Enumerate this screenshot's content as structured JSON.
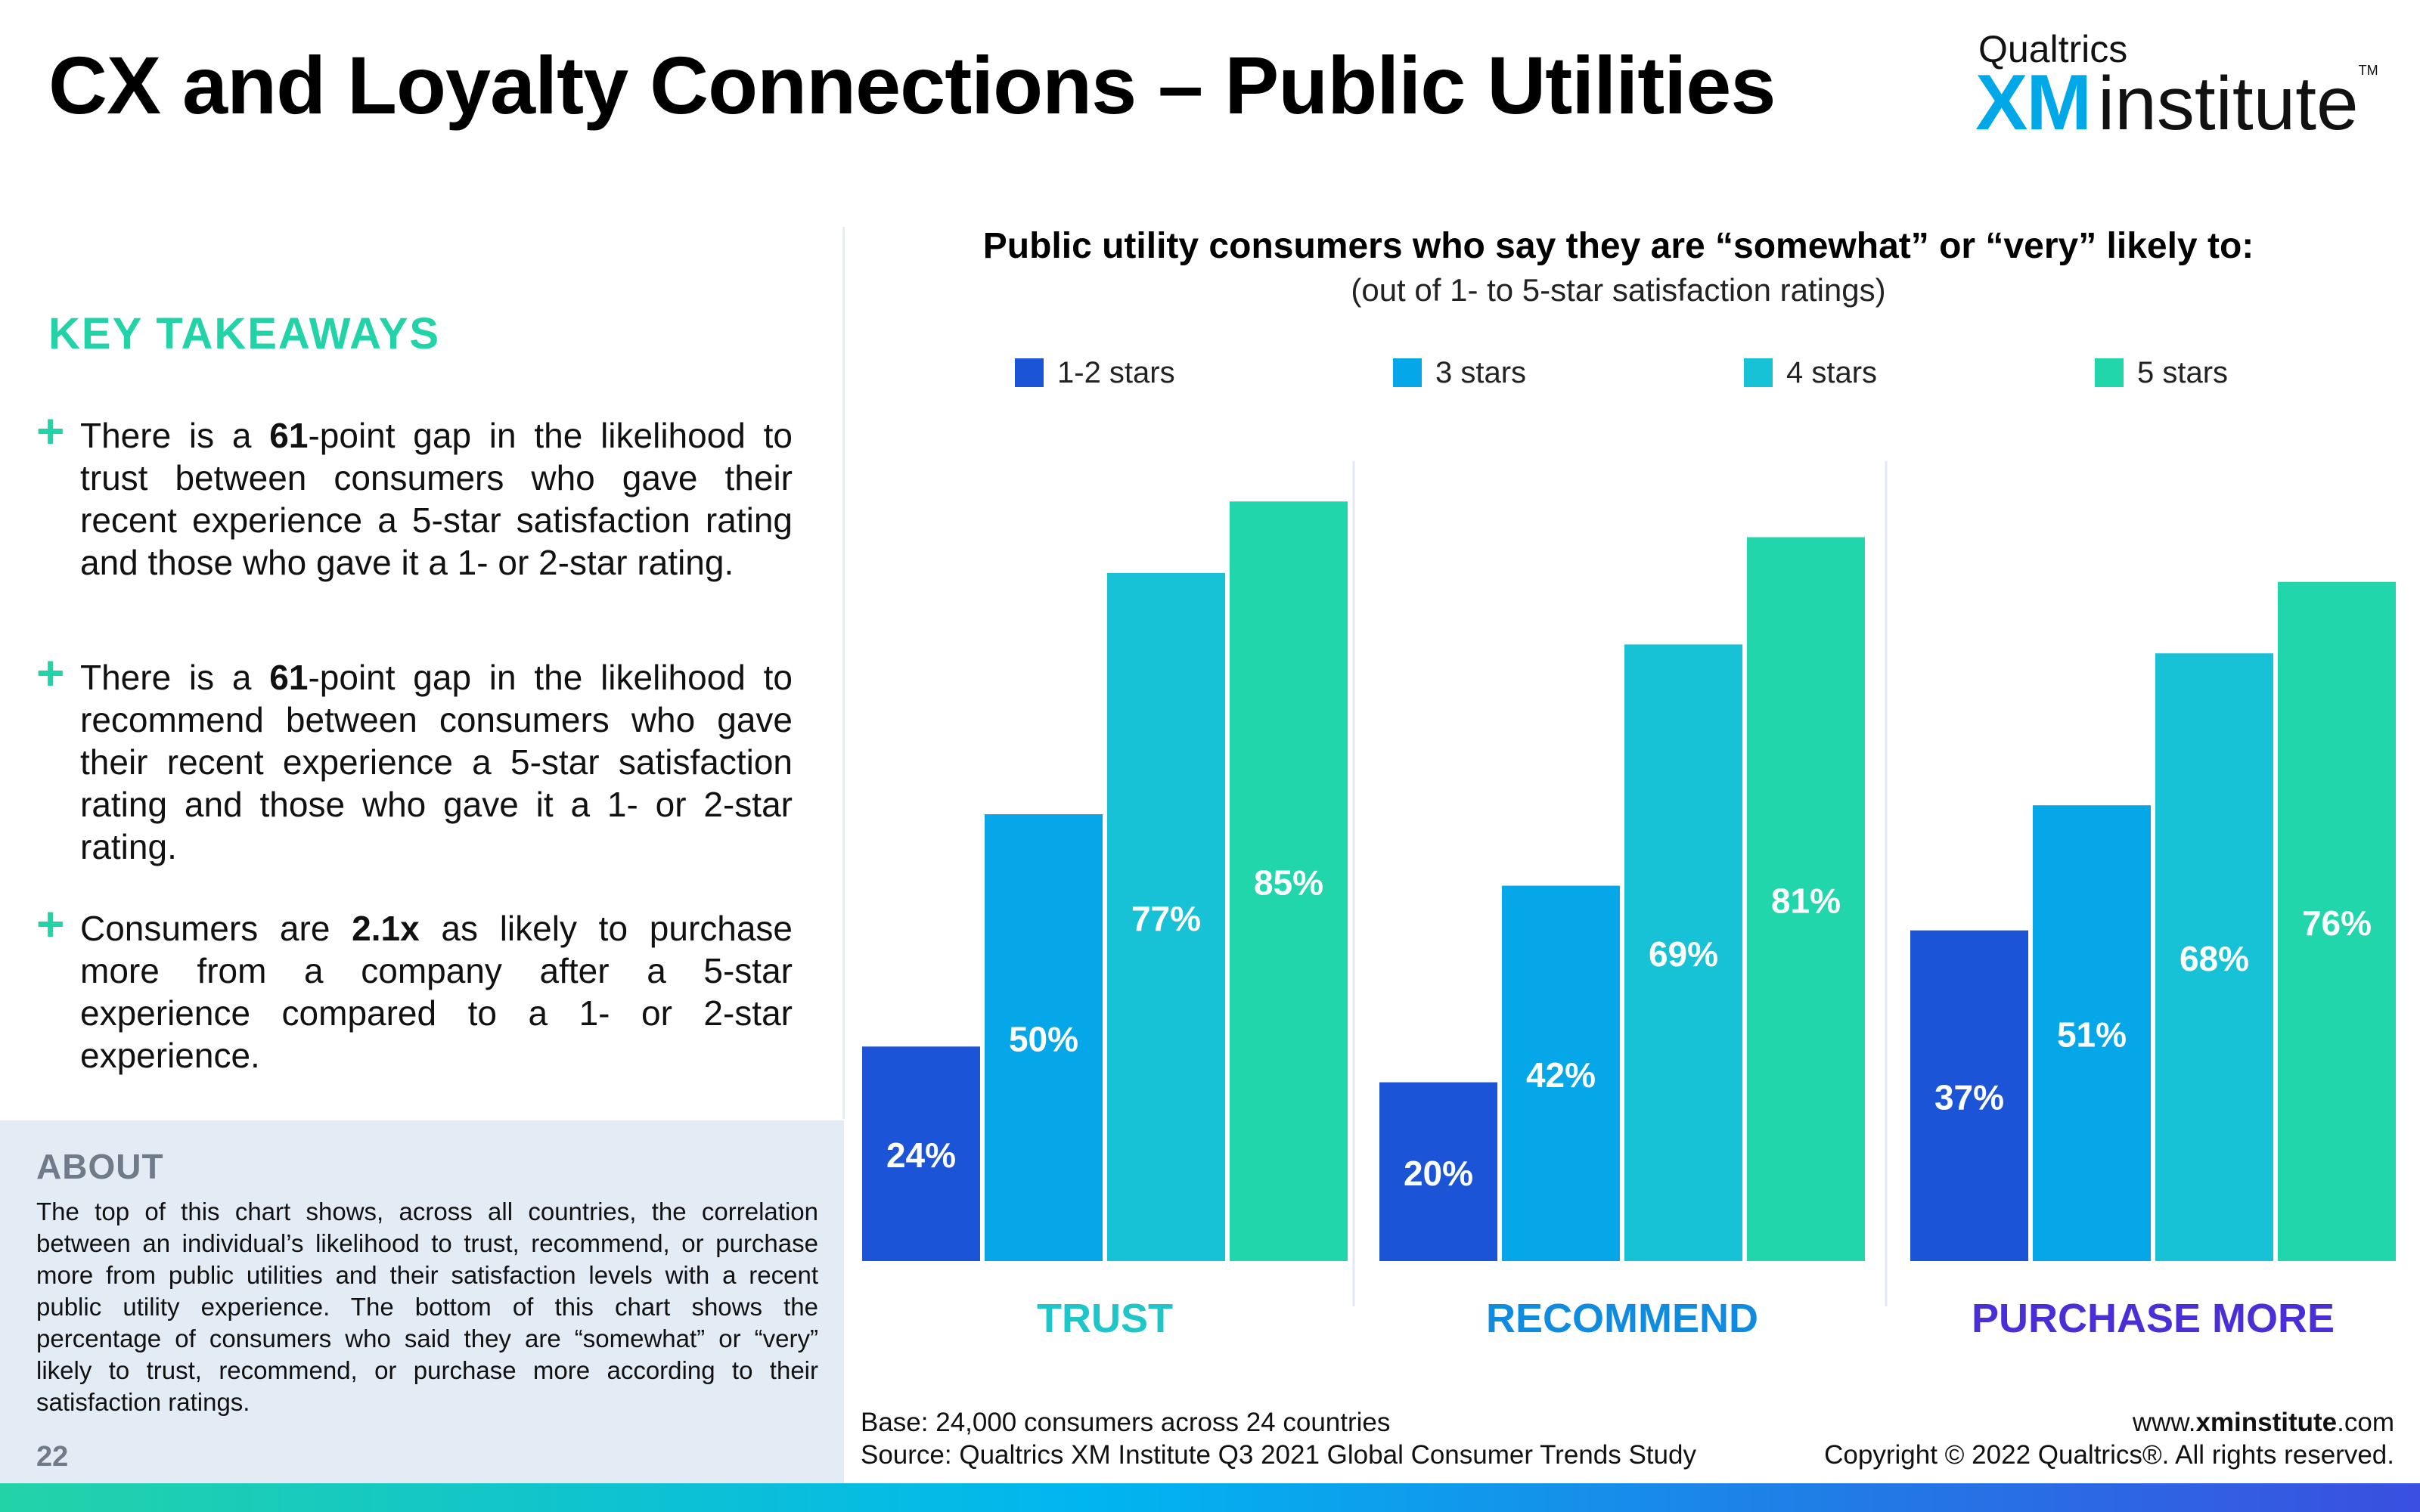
{
  "header": {
    "title": "CX and Loyalty Connections – Public Utilities",
    "brand_small": "Qualtrics",
    "brand_xm": "XM",
    "brand_institute": "institute",
    "brand_tm": "TM"
  },
  "takeaways": {
    "heading": "KEY TAKEAWAYS",
    "items": [
      {
        "pre": "There is a ",
        "bold": "61",
        "post": "-point gap in the likelihood to trust between consumers who gave their recent experience a 5-star satisfaction rating and those who gave it a 1- or 2-star rating."
      },
      {
        "pre": "There is a ",
        "bold": "61",
        "post": "-point gap in the likelihood to recommend between consumers who gave their recent experience a 5-star satisfaction rating and those who gave it a 1- or 2-star rating."
      },
      {
        "pre": "Consumers are ",
        "bold": "2.1x",
        "post": " as likely to purchase more from a company after a 5-star experience compared to a 1- or 2-star experience."
      }
    ]
  },
  "about": {
    "heading": "ABOUT",
    "text": "The top of this chart shows, across all countries, the correlation between an individual’s likelihood to trust, recommend, or purchase more from public utilities and their satisfaction levels with a recent public utility experience. The bottom of this chart shows the percentage of consumers who said they are “somewhat” or “very” likely to trust, recommend, or purchase more according to their satisfaction ratings."
  },
  "page_number": "22",
  "chart_data": {
    "type": "bar",
    "title": "Public utility consumers who say they are “somewhat” or “very” likely to:",
    "subtitle": "(out of 1- to 5-star satisfaction ratings)",
    "categories": [
      "TRUST",
      "RECOMMEND",
      "PURCHASE MORE"
    ],
    "category_colors": [
      "#1ec6c9",
      "#0f8be0",
      "#4b2fd6"
    ],
    "series": [
      {
        "name": "1-2 stars",
        "values": [
          24,
          20,
          37
        ],
        "labels": [
          "24%",
          "20%",
          "37%"
        ],
        "color": "#1b54d6"
      },
      {
        "name": "3 stars",
        "values": [
          50,
          42,
          51
        ],
        "labels": [
          "50%",
          "42%",
          "51%"
        ],
        "color": "#06a7e8"
      },
      {
        "name": "4 stars",
        "values": [
          77,
          69,
          68
        ],
        "labels": [
          "77%",
          "69%",
          "68%"
        ],
        "color": "#17c2d6"
      },
      {
        "name": "5 stars",
        "values": [
          85,
          81,
          76
        ],
        "labels": [
          "85%",
          "81%",
          "76%"
        ],
        "color": "#22d6ab"
      }
    ],
    "ylim": [
      0,
      100
    ],
    "grid": false,
    "legend_position": "top"
  },
  "footer": {
    "base": "Base: 24,000 consumers across 24 countries",
    "source": "Source: Qualtrics XM Institute Q3 2021 Global Consumer Trends Study",
    "site_pre": "www.",
    "site_bold": "xminstitute",
    "site_post": ".com",
    "copyright": "Copyright © 2022 Qualtrics®. All rights reserved."
  }
}
